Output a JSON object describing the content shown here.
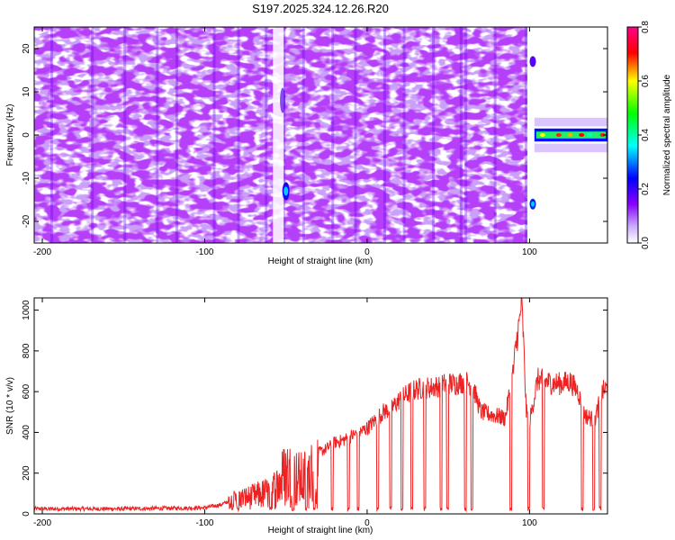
{
  "title": "S197.2025.324.12.26.R20",
  "chart_data": [
    {
      "type": "heatmap",
      "xlabel": "Height of straight line (km)",
      "ylabel": "Frequency (Hz)",
      "xlim": [
        -205,
        148
      ],
      "ylim": [
        -25,
        25
      ],
      "xticks": [
        -200,
        -100,
        0,
        100
      ],
      "yticks": [
        -20,
        -10,
        0,
        10,
        20
      ],
      "colorbar": {
        "label": "Normalized spectral amplitude",
        "range": [
          0.0,
          0.8
        ],
        "ticks": [
          "0.0",
          "0.2",
          "0.4",
          "0.6",
          "0.8"
        ],
        "colormap": [
          "#ffffff",
          "#8800ff",
          "#0000ff",
          "#00ffff",
          "#00ff00",
          "#ffff00",
          "#ff0000",
          "#ff00aa"
        ]
      },
      "features": [
        {
          "desc": "broadband noise",
          "x_range": [
            -205,
            103
          ],
          "freq_range": [
            -25,
            25
          ],
          "amplitude": 0.05
        },
        {
          "desc": "narrow signal band",
          "x_range": [
            103,
            148
          ],
          "freq_center": 0,
          "amplitude": 0.35
        },
        {
          "desc": "spot",
          "x": -50,
          "freq": -13,
          "amplitude": 0.25
        },
        {
          "desc": "spot",
          "x": 102,
          "freq": -16,
          "amplitude": 0.22
        },
        {
          "desc": "spot",
          "x": 102,
          "freq": 17,
          "amplitude": 0.12
        }
      ]
    },
    {
      "type": "line",
      "xlabel": "Height of straight line (km)",
      "ylabel": "SNR (10 * v/v)",
      "xlim": [
        -205,
        148
      ],
      "ylim": [
        0,
        1060
      ],
      "xticks": [
        -200,
        -100,
        0,
        100
      ],
      "yticks": [
        0,
        200,
        400,
        600,
        800,
        1000
      ],
      "color": "#ee2222",
      "x": [
        -205,
        -150,
        -100,
        -90,
        -80,
        -70,
        -60,
        -55,
        -50,
        -45,
        -40,
        -35,
        -30,
        -25,
        -20,
        -15,
        -10,
        -5,
        0,
        5,
        10,
        15,
        20,
        25,
        30,
        35,
        40,
        45,
        50,
        55,
        60,
        65,
        70,
        75,
        80,
        85,
        90,
        92,
        94,
        95,
        96,
        97,
        98,
        100,
        105,
        110,
        115,
        120,
        125,
        130,
        133,
        135,
        140,
        145,
        148
      ],
      "y": [
        25,
        25,
        30,
        45,
        80,
        100,
        130,
        180,
        280,
        240,
        220,
        260,
        300,
        320,
        350,
        360,
        380,
        400,
        420,
        460,
        500,
        520,
        560,
        590,
        610,
        620,
        620,
        630,
        640,
        640,
        650,
        630,
        500,
        490,
        480,
        470,
        700,
        850,
        950,
        1050,
        900,
        700,
        500,
        450,
        660,
        650,
        640,
        640,
        650,
        600,
        500,
        480,
        460,
        600,
        620
      ],
      "dropouts": [
        [
          -80,
          -79
        ],
        [
          -60,
          -59
        ],
        [
          -46,
          -45
        ],
        [
          -38,
          -37
        ],
        [
          -33,
          -32
        ],
        [
          -22,
          -21
        ],
        [
          -12,
          -11
        ],
        [
          -6,
          -5
        ],
        [
          6,
          7
        ],
        [
          14,
          15
        ],
        [
          21,
          22
        ],
        [
          27,
          28
        ],
        [
          35,
          36
        ],
        [
          45,
          46
        ],
        [
          49,
          50
        ],
        [
          60,
          61
        ],
        [
          64,
          65
        ],
        [
          88,
          89
        ],
        [
          99,
          100
        ],
        [
          108,
          109
        ],
        [
          132,
          133
        ],
        [
          139,
          140
        ],
        [
          143,
          144
        ]
      ]
    }
  ]
}
